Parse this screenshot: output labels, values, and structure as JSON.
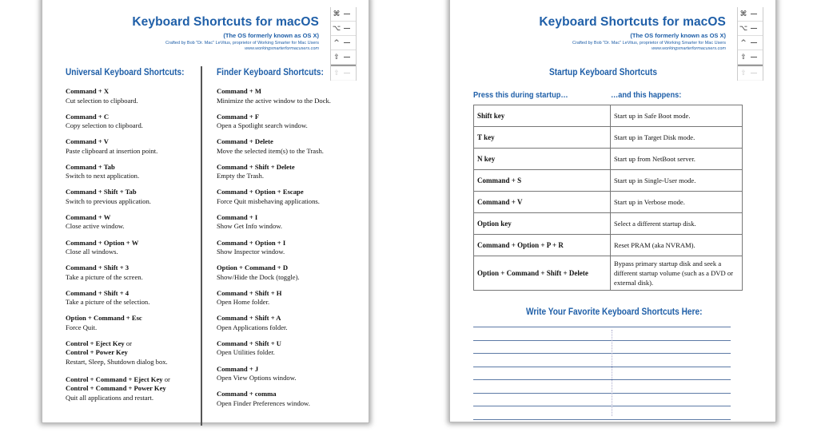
{
  "header": {
    "title": "Keyboard Shortcuts for macOS",
    "subtitle": "(The OS formerly known as OS X)",
    "credit": "Crafted by Bob \"Dr. Mac\" LeVitus, proprietor of Working Smarter for Mac Users",
    "url": "www.workingsmarterformacusers.com"
  },
  "key_icons": [
    "⌘",
    "⌥",
    "^",
    "⇧"
  ],
  "universal": {
    "heading": "Universal Keyboard Shortcuts:",
    "items": [
      {
        "keys": "Command + X",
        "desc": "Cut selection to clipboard."
      },
      {
        "keys": "Command + C",
        "desc": "Copy selection to clipboard."
      },
      {
        "keys": "Command + V",
        "desc": "Paste clipboard at insertion point."
      },
      {
        "keys": "Command + Tab",
        "desc": "Switch to next application."
      },
      {
        "keys": "Command + Shift + Tab",
        "desc": "Switch to previous application."
      },
      {
        "keys": "Command + W",
        "desc": "Close active window."
      },
      {
        "keys": "Command + Option + W",
        "desc": "Close all windows."
      },
      {
        "keys": "Command + Shift + 3",
        "desc": "Take a picture of the screen."
      },
      {
        "keys": "Command + Shift + 4",
        "desc": "Take a picture of the selection."
      },
      {
        "keys": "Option + Command + Esc",
        "desc": "Force Quit."
      },
      {
        "keys": "Control + Eject Key",
        "or": "or",
        "keys2": "Control + Power Key",
        "desc": "Restart, Sleep, Shutdown dialog box."
      },
      {
        "keys": "Control + Command + Eject Key",
        "or": "or",
        "keys2": "Control + Command + Power Key",
        "desc": "Quit all applications and restart."
      }
    ]
  },
  "finder": {
    "heading": "Finder Keyboard Shortcuts:",
    "items": [
      {
        "keys": "Command + M",
        "desc": "Minimize the active window to the Dock."
      },
      {
        "keys": "Command + F",
        "desc": "Open a Spotlight search window."
      },
      {
        "keys": "Command + Delete",
        "desc": "Move the selected item(s) to the Trash."
      },
      {
        "keys": "Command + Shift + Delete",
        "desc": "Empty the Trash."
      },
      {
        "keys": "Command + Option + Escape",
        "desc": "Force Quit misbehaving applications."
      },
      {
        "keys": "Command + I",
        "desc": "Show Get Info window."
      },
      {
        "keys": "Command + Option + I",
        "desc": "Show Inspector window."
      },
      {
        "keys": "Option + Command + D",
        "desc": "Show/Hide the Dock (toggle)."
      },
      {
        "keys": "Command + Shift + H",
        "desc": "Open Home folder."
      },
      {
        "keys": "Command + Shift + A",
        "desc": "Open Applications folder."
      },
      {
        "keys": "Command + Shift + U",
        "desc": "Open Utilities folder."
      },
      {
        "keys": "Command + J",
        "desc": "Open View Options window."
      },
      {
        "keys": "Command + comma",
        "desc": "Open Finder Preferences window."
      }
    ]
  },
  "startup": {
    "heading": "Startup Keyboard Shortcuts",
    "col1": "Press this during startup…",
    "col2": "…and this happens:",
    "rows": [
      {
        "keys": "Shift key",
        "desc": "Start up in Safe Boot mode."
      },
      {
        "keys": "T key",
        "desc": "Start up in Target Disk mode."
      },
      {
        "keys": "N key",
        "desc": "Start up from NetBoot server."
      },
      {
        "keys": "Command + S",
        "desc": "Start up in Single-User mode."
      },
      {
        "keys": "Command + V",
        "desc": "Start up in Verbose mode."
      },
      {
        "keys": "Option key",
        "desc": "Select a different startup disk."
      },
      {
        "keys": "Command + Option + P + R",
        "desc": "Reset PRAM (aka NVRAM)."
      },
      {
        "keys": "Option + Command + Shift + Delete",
        "desc": "Bypass primary startup disk and seek a different startup volume (such as a DVD or external disk)."
      }
    ]
  },
  "favorites": {
    "heading": "Write Your Favorite Keyboard Shortcuts Here:"
  },
  "colors": {
    "accent": "#1f5fa8"
  }
}
